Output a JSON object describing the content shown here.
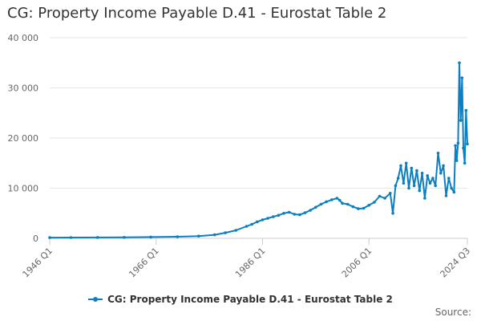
{
  "title": "CG: Property Income Payable D.41 - Eurostat Table 2",
  "legend_label": "CG: Property Income Payable D.41 - Eurostat Table 2",
  "source_label": "Source:",
  "chart_data": {
    "type": "line",
    "title": "CG: Property Income Payable D.41 - Eurostat Table 2",
    "xlabel": "",
    "ylabel": "",
    "x_ticks": [
      "1946 Q1",
      "1966 Q1",
      "1986 Q1",
      "2006 Q1",
      "2024 Q3"
    ],
    "y_ticks": [
      "0",
      "10 000",
      "20 000",
      "30 000",
      "40 000"
    ],
    "ylim": [
      0,
      40000
    ],
    "xlim": [
      "1946 Q1",
      "2024 Q3"
    ],
    "grid": "horizontal",
    "legend_position": "bottom",
    "series": [
      {
        "name": "CG: Property Income Payable D.41 - Eurostat Table 2",
        "color": "#0b7fbf",
        "points": [
          [
            "1946 Q1",
            150
          ],
          [
            "1950 Q1",
            160
          ],
          [
            "1955 Q1",
            180
          ],
          [
            "1960 Q1",
            200
          ],
          [
            "1965 Q1",
            250
          ],
          [
            "1970 Q1",
            320
          ],
          [
            "1974 Q1",
            450
          ],
          [
            "1977 Q1",
            700
          ],
          [
            "1979 Q1",
            1100
          ],
          [
            "1981 Q1",
            1600
          ],
          [
            "1983 Q1",
            2400
          ],
          [
            "1984 Q1",
            2800
          ],
          [
            "1985 Q1",
            3300
          ],
          [
            "1986 Q1",
            3700
          ],
          [
            "1987 Q1",
            4000
          ],
          [
            "1988 Q1",
            4300
          ],
          [
            "1989 Q1",
            4600
          ],
          [
            "1990 Q1",
            5000
          ],
          [
            "1991 Q1",
            5200
          ],
          [
            "1992 Q1",
            4800
          ],
          [
            "1993 Q1",
            4700
          ],
          [
            "1994 Q1",
            5100
          ],
          [
            "1995 Q1",
            5600
          ],
          [
            "1996 Q1",
            6200
          ],
          [
            "1997 Q1",
            6800
          ],
          [
            "1998 Q1",
            7300
          ],
          [
            "1999 Q1",
            7700
          ],
          [
            "2000 Q1",
            8000
          ],
          [
            "2000 Q3",
            7600
          ],
          [
            "2001 Q1",
            7000
          ],
          [
            "2002 Q1",
            6800
          ],
          [
            "2003 Q1",
            6300
          ],
          [
            "2004 Q1",
            5900
          ],
          [
            "2005 Q1",
            6000
          ],
          [
            "2006 Q1",
            6600
          ],
          [
            "2007 Q1",
            7200
          ],
          [
            "2008 Q1",
            8400
          ],
          [
            "2009 Q1",
            8000
          ],
          [
            "2010 Q1",
            9000
          ],
          [
            "2010 Q3",
            5000
          ],
          [
            "2011 Q1",
            10500
          ],
          [
            "2011 Q3",
            12000
          ],
          [
            "2012 Q1",
            14500
          ],
          [
            "2012 Q3",
            11000
          ],
          [
            "2013 Q1",
            15000
          ],
          [
            "2013 Q3",
            10000
          ],
          [
            "2014 Q1",
            14000
          ],
          [
            "2014 Q3",
            10500
          ],
          [
            "2015 Q1",
            13500
          ],
          [
            "2015 Q3",
            9500
          ],
          [
            "2016 Q1",
            13000
          ],
          [
            "2016 Q3",
            8000
          ],
          [
            "2017 Q1",
            12500
          ],
          [
            "2017 Q3",
            11000
          ],
          [
            "2018 Q1",
            12000
          ],
          [
            "2018 Q3",
            10500
          ],
          [
            "2019 Q1",
            17000
          ],
          [
            "2019 Q3",
            13000
          ],
          [
            "2020 Q1",
            14500
          ],
          [
            "2020 Q3",
            8500
          ],
          [
            "2021 Q1",
            12000
          ],
          [
            "2021 Q3",
            10000
          ],
          [
            "2022 Q1",
            9200
          ],
          [
            "2022 Q2",
            18500
          ],
          [
            "2022 Q3",
            15500
          ],
          [
            "2022 Q4",
            19000
          ],
          [
            "2023 Q1",
            35000
          ],
          [
            "2023 Q2",
            23500
          ],
          [
            "2023 Q3",
            32000
          ],
          [
            "2023 Q4",
            18000
          ],
          [
            "2024 Q1",
            15000
          ],
          [
            "2024 Q2",
            25500
          ],
          [
            "2024 Q3",
            18800
          ]
        ]
      }
    ]
  }
}
